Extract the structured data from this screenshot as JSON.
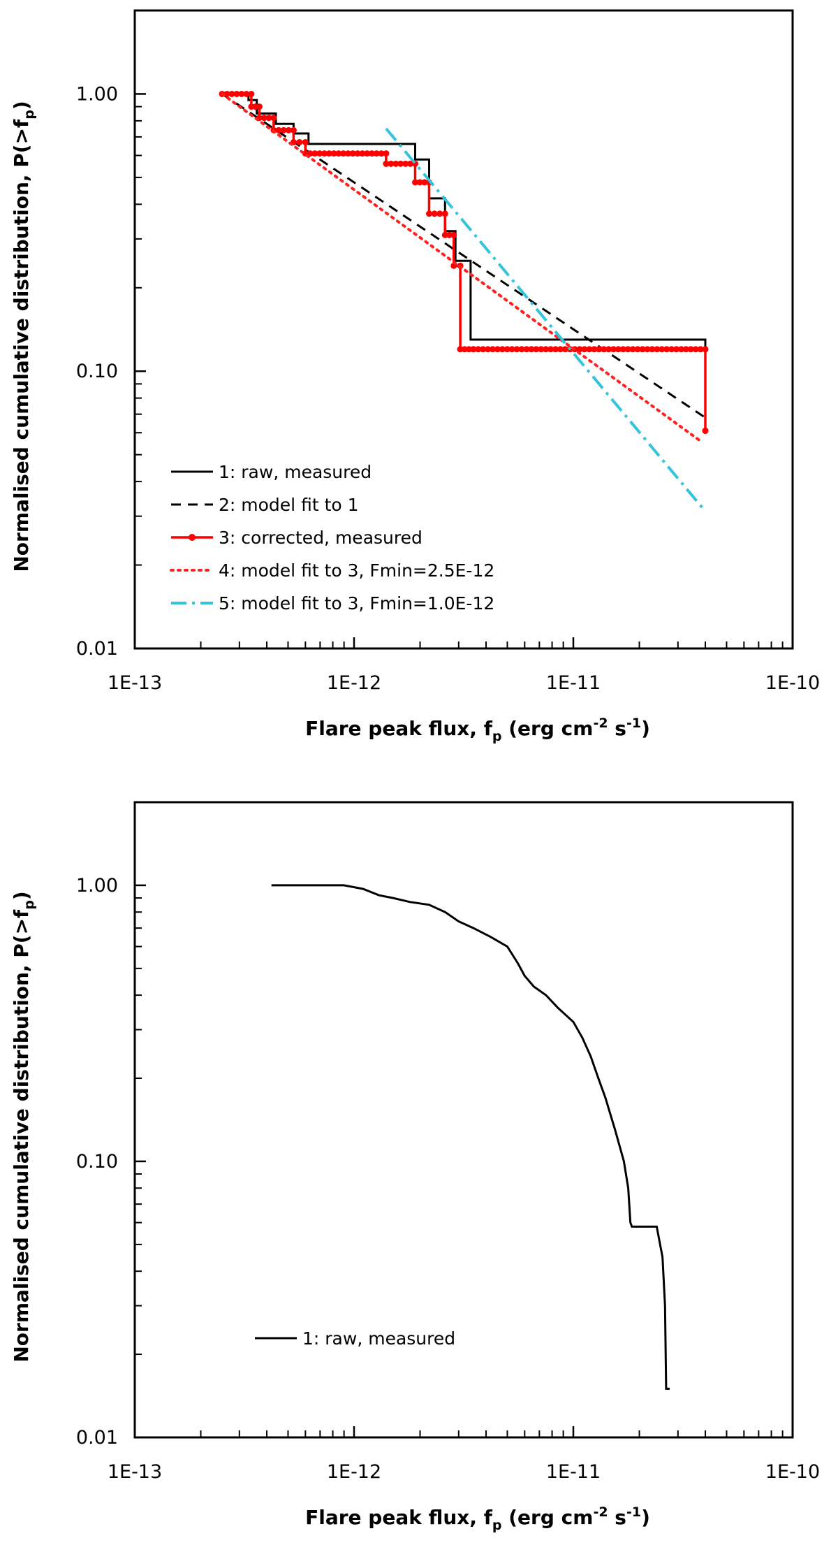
{
  "chart_data": [
    {
      "type": "line",
      "xscale": "log",
      "yscale": "log",
      "xlim": [
        1e-13,
        1e-10
      ],
      "ylim": [
        0.01,
        2
      ],
      "xticks": [
        "1E-13",
        "1E-12",
        "1E-11",
        "1E-10"
      ],
      "yticks": [
        "0.01",
        "0.10",
        "1.00"
      ],
      "xlabel": "Flare peak flux, f",
      "xlabel_sub": "p",
      "xlabel_units_pre": " (erg cm",
      "xlabel_units_sup1": "-2",
      "xlabel_units_mid": " s",
      "xlabel_units_sup2": "-1",
      "xlabel_units_post": ")",
      "ylabel": "Normalised cumulative distribution, P(>f",
      "ylabel_sub": "p",
      "ylabel_post": ")",
      "legend_position": "lower-left",
      "series": [
        {
          "name": "1: raw, measured",
          "style": "solid",
          "color": "#000000",
          "step": true,
          "x": [
            2.5e-13,
            3.3e-13,
            3.6e-13,
            4.4e-13,
            5.3e-13,
            6.2e-13,
            1.9e-12,
            2.2e-12,
            2.6e-12,
            2.9e-12,
            3.4e-12,
            4e-11
          ],
          "y": [
            1.0,
            0.95,
            0.85,
            0.78,
            0.72,
            0.66,
            0.58,
            0.42,
            0.32,
            0.25,
            0.13,
            0.067
          ]
        },
        {
          "name": "2: model fit to 1",
          "style": "dashed",
          "color": "#000000",
          "x": [
            2.5e-13,
            4e-11
          ],
          "y": [
            1.0,
            0.068
          ]
        },
        {
          "name": "3: corrected, measured",
          "style": "solid-markers",
          "color": "#ff0000",
          "step": true,
          "x": [
            2.5e-13,
            3.4e-13,
            3.7e-13,
            4.3e-13,
            5.3e-13,
            6e-13,
            1.4e-12,
            1.9e-12,
            2.2e-12,
            2.6e-12,
            2.85e-12,
            3.05e-12,
            3.5e-12,
            4e-11
          ],
          "y": [
            1.0,
            0.9,
            0.82,
            0.74,
            0.67,
            0.61,
            0.56,
            0.48,
            0.37,
            0.31,
            0.24,
            0.12,
            0.12,
            0.061
          ]
        },
        {
          "name": "4: model fit to 3, Fmin=2.5E-12",
          "style": "dotted",
          "color": "#ff2020",
          "x": [
            2.5e-13,
            3.8e-11
          ],
          "y": [
            1.0,
            0.056
          ]
        },
        {
          "name": "5: model fit to 3, Fmin=1.0E-12",
          "style": "dashdot",
          "color": "#33c3dd",
          "x": [
            1.4e-12,
            3.9e-11
          ],
          "y": [
            0.75,
            0.032
          ]
        }
      ]
    },
    {
      "type": "line",
      "xscale": "log",
      "yscale": "log",
      "xlim": [
        1e-13,
        1e-10
      ],
      "ylim": [
        0.01,
        2
      ],
      "xticks": [
        "1E-13",
        "1E-12",
        "1E-11",
        "1E-10"
      ],
      "yticks": [
        "0.01",
        "0.10",
        "1.00"
      ],
      "xlabel": "Flare peak flux, f",
      "xlabel_sub": "p",
      "xlabel_units_pre": " (erg cm",
      "xlabel_units_sup1": "-2",
      "xlabel_units_mid": " s",
      "xlabel_units_sup2": "-1",
      "xlabel_units_post": ")",
      "ylabel": "Normalised cumulative distribution, P(>f",
      "ylabel_sub": "p",
      "ylabel_post": ")",
      "legend_position": "lower-left",
      "series": [
        {
          "name": "1: raw, measured",
          "style": "solid",
          "color": "#000000",
          "x": [
            4.2e-13,
            9e-13,
            1.1e-12,
            1.3e-12,
            1.5e-12,
            1.8e-12,
            2.2e-12,
            2.6e-12,
            3e-12,
            3.5e-12,
            4.2e-12,
            5e-12,
            5.6e-12,
            6e-12,
            6.6e-12,
            7.5e-12,
            8.5e-12,
            1e-11,
            1.1e-11,
            1.2e-11,
            1.3e-11,
            1.4e-11,
            1.55e-11,
            1.7e-11,
            1.78e-11,
            1.82e-11,
            1.85e-11,
            2.4e-11,
            2.55e-11,
            2.62e-11,
            2.65e-11,
            2.75e-11
          ],
          "y": [
            1.0,
            1.0,
            0.97,
            0.92,
            0.9,
            0.87,
            0.85,
            0.8,
            0.74,
            0.7,
            0.65,
            0.6,
            0.52,
            0.47,
            0.43,
            0.4,
            0.36,
            0.32,
            0.28,
            0.24,
            0.2,
            0.17,
            0.13,
            0.1,
            0.08,
            0.06,
            0.058,
            0.058,
            0.045,
            0.03,
            0.015,
            0.015
          ]
        }
      ]
    }
  ],
  "colors": {
    "axis": "#000000",
    "background": "#ffffff"
  }
}
